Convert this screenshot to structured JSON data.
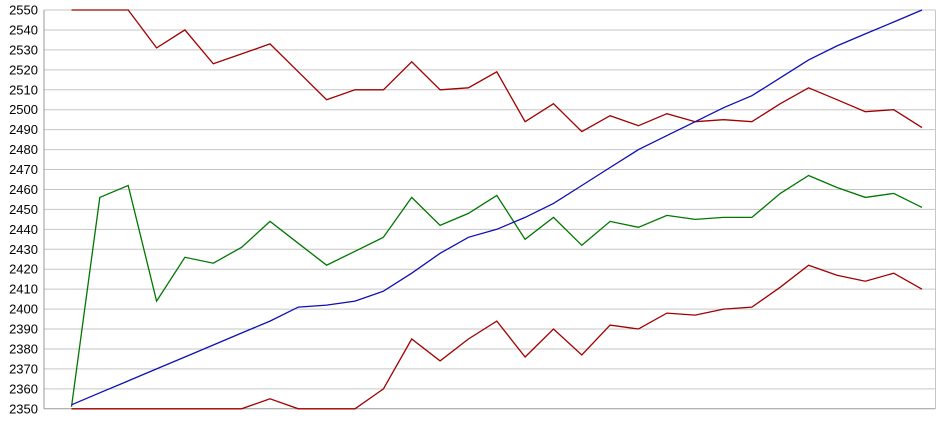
{
  "chart_data": {
    "type": "line",
    "title": "",
    "x": [
      1,
      2,
      3,
      4,
      5,
      6,
      7,
      8,
      9,
      10,
      11,
      12,
      13,
      14,
      15,
      16,
      17,
      18,
      19,
      20,
      21,
      22,
      23,
      24,
      25,
      26,
      27,
      28,
      29,
      30,
      31
    ],
    "x_axis_labels": [],
    "series": [
      {
        "name": "upper-dark-red",
        "color": "#a00000",
        "values": [
          2550,
          2550,
          2550,
          2531,
          2540,
          2523,
          2528,
          2533,
          2519,
          2505,
          2510,
          2510,
          2524,
          2510,
          2511,
          2519,
          2494,
          2503,
          2489,
          2497,
          2492,
          2498,
          2494,
          2495,
          2494,
          2503,
          2511,
          2505,
          2499,
          2500,
          2491
        ]
      },
      {
        "name": "green",
        "color": "#007700",
        "values": [
          2351,
          2456,
          2462,
          2404,
          2426,
          2423,
          2431,
          2444,
          2433,
          2422,
          2429,
          2436,
          2456,
          2442,
          2448,
          2457,
          2435,
          2446,
          2432,
          2444,
          2441,
          2447,
          2445,
          2446,
          2446,
          2458,
          2467,
          2461,
          2456,
          2458,
          2451
        ]
      },
      {
        "name": "blue",
        "color": "#0f0fb4",
        "values": [
          2352,
          2358,
          2364,
          2370,
          2376,
          2382,
          2388,
          2394,
          2401,
          2402,
          2404,
          2409,
          2418,
          2428,
          2436,
          2440,
          2446,
          2453,
          2462,
          2471,
          2480,
          2487,
          2494,
          2501,
          2507,
          2516,
          2525,
          2532,
          2538,
          2544,
          2550
        ]
      },
      {
        "name": "lower-dark-red",
        "color": "#a00000",
        "values": [
          2350,
          2350,
          2350,
          2350,
          2350,
          2350,
          2350,
          2355,
          2350,
          2350,
          2350,
          2360,
          2385,
          2374,
          2385,
          2394,
          2376,
          2390,
          2377,
          2392,
          2390,
          2398,
          2397,
          2400,
          2401,
          2411,
          2422,
          2417,
          2414,
          2418,
          2410
        ]
      }
    ],
    "ylim": [
      2350,
      2550
    ],
    "y_tick_step": 10,
    "y_tick_labels": [
      "2350",
      "2360",
      "2370",
      "2380",
      "2390",
      "2400",
      "2410",
      "2420",
      "2430",
      "2440",
      "2450",
      "2460",
      "2470",
      "2480",
      "2490",
      "2500",
      "2510",
      "2520",
      "2530",
      "2540",
      "2550"
    ],
    "grid": "horizontal",
    "legend": "none",
    "gridline_color": "#c6c6c6",
    "axis_color": "#9a9a9a",
    "label_color": "#000000",
    "background": "#ffffff"
  }
}
